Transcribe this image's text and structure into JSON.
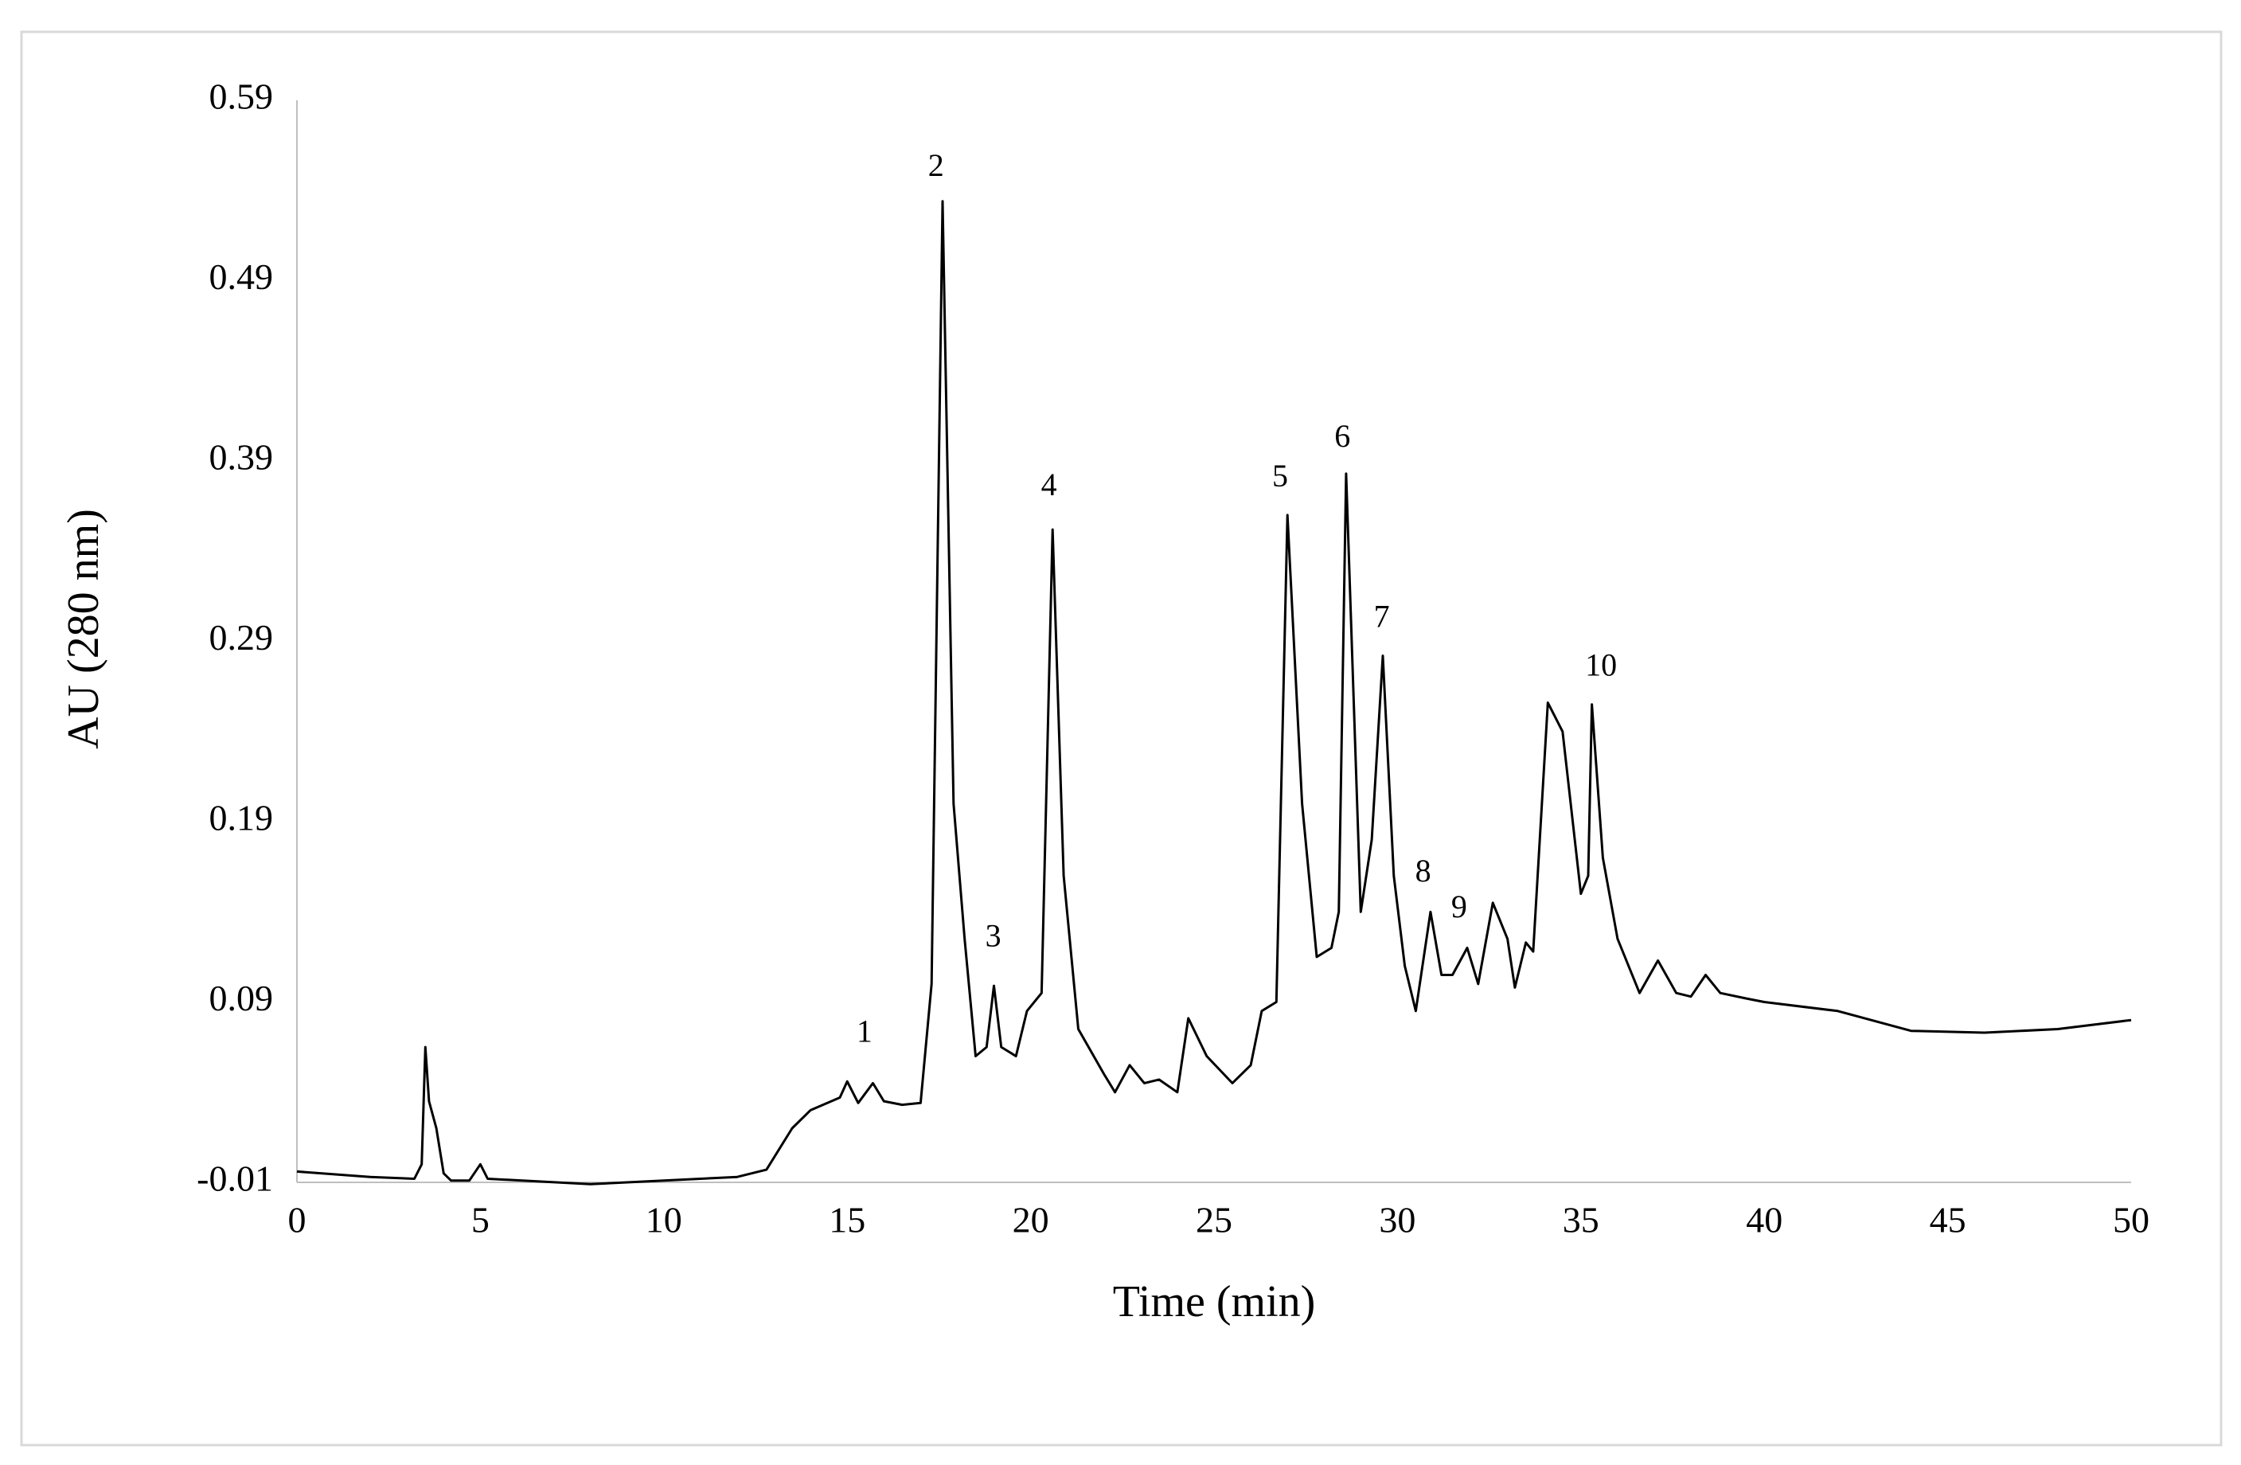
{
  "chart_data": {
    "type": "line",
    "x_label": "Time (min)",
    "y_label": "AU (280 nm)",
    "color": "#000000",
    "xlim": [
      0,
      50
    ],
    "xticks": [
      0,
      5,
      10,
      15,
      20,
      25,
      30,
      35,
      40,
      45,
      50
    ],
    "ylim": [
      -0.01,
      0.59
    ],
    "yticks": [
      -0.01,
      0.09,
      0.19,
      0.29,
      0.39,
      0.49,
      0.59
    ],
    "grid": false,
    "x": [
      0,
      2,
      3.2,
      3.4,
      3.5,
      3.6,
      3.8,
      4.0,
      4.2,
      4.7,
      5.0,
      5.2,
      8,
      10,
      12,
      12.8,
      13.5,
      14,
      14.8,
      15.0,
      15.3,
      15.7,
      16.0,
      16.5,
      17.0,
      17.3,
      17.6,
      17.9,
      18.2,
      18.5,
      18.8,
      19.0,
      19.2,
      19.6,
      19.9,
      20.3,
      20.6,
      20.9,
      21.3,
      22,
      22.3,
      22.7,
      23.1,
      23.5,
      24.0,
      24.3,
      24.8,
      25.5,
      26.0,
      26.3,
      26.7,
      27.0,
      27.4,
      27.8,
      28.2,
      28.4,
      28.6,
      29.0,
      29.3,
      29.6,
      29.9,
      30.2,
      30.5,
      30.9,
      31.2,
      31.5,
      31.9,
      32.2,
      32.6,
      33.0,
      33.2,
      33.5,
      33.7,
      34.1,
      34.5,
      35.0,
      35.2,
      35.3,
      35.6,
      36.0,
      36.6,
      37.1,
      37.6,
      38.0,
      38.4,
      38.8,
      39.5,
      40,
      42,
      44,
      46,
      48,
      50
    ],
    "values": [
      -0.004,
      -0.007,
      -0.008,
      0.0,
      0.065,
      0.035,
      0.02,
      -0.005,
      -0.009,
      -0.009,
      0.0,
      -0.008,
      -0.011,
      -0.009,
      -0.007,
      -0.003,
      0.02,
      0.03,
      0.037,
      0.046,
      0.034,
      0.045,
      0.035,
      0.033,
      0.034,
      0.1,
      0.534,
      0.2,
      0.125,
      0.06,
      0.065,
      0.099,
      0.065,
      0.06,
      0.085,
      0.095,
      0.352,
      0.16,
      0.075,
      0.05,
      0.04,
      0.055,
      0.045,
      0.047,
      0.04,
      0.081,
      0.06,
      0.045,
      0.055,
      0.085,
      0.09,
      0.36,
      0.2,
      0.115,
      0.12,
      0.14,
      0.383,
      0.14,
      0.18,
      0.282,
      0.16,
      0.11,
      0.085,
      0.14,
      0.105,
      0.105,
      0.12,
      0.1,
      0.145,
      0.125,
      0.098,
      0.123,
      0.118,
      0.256,
      0.24,
      0.15,
      0.16,
      0.255,
      0.17,
      0.125,
      0.095,
      0.113,
      0.095,
      0.093,
      0.105,
      0.095,
      0.092,
      0.09,
      0.085,
      0.074,
      0.073,
      0.075,
      0.08
    ],
    "annotations": [
      {
        "text": "1",
        "x": 15.47,
        "y": 0.072
      },
      {
        "text": "2",
        "x": 17.42,
        "y": 0.552
      },
      {
        "text": "3",
        "x": 18.98,
        "y": 0.125
      },
      {
        "text": "4",
        "x": 20.5,
        "y": 0.375
      },
      {
        "text": "5",
        "x": 26.8,
        "y": 0.38
      },
      {
        "text": "6",
        "x": 28.5,
        "y": 0.402
      },
      {
        "text": "7",
        "x": 29.57,
        "y": 0.302
      },
      {
        "text": "8",
        "x": 30.7,
        "y": 0.161
      },
      {
        "text": "9",
        "x": 31.68,
        "y": 0.141
      },
      {
        "text": "10",
        "x": 35.55,
        "y": 0.275
      }
    ]
  }
}
